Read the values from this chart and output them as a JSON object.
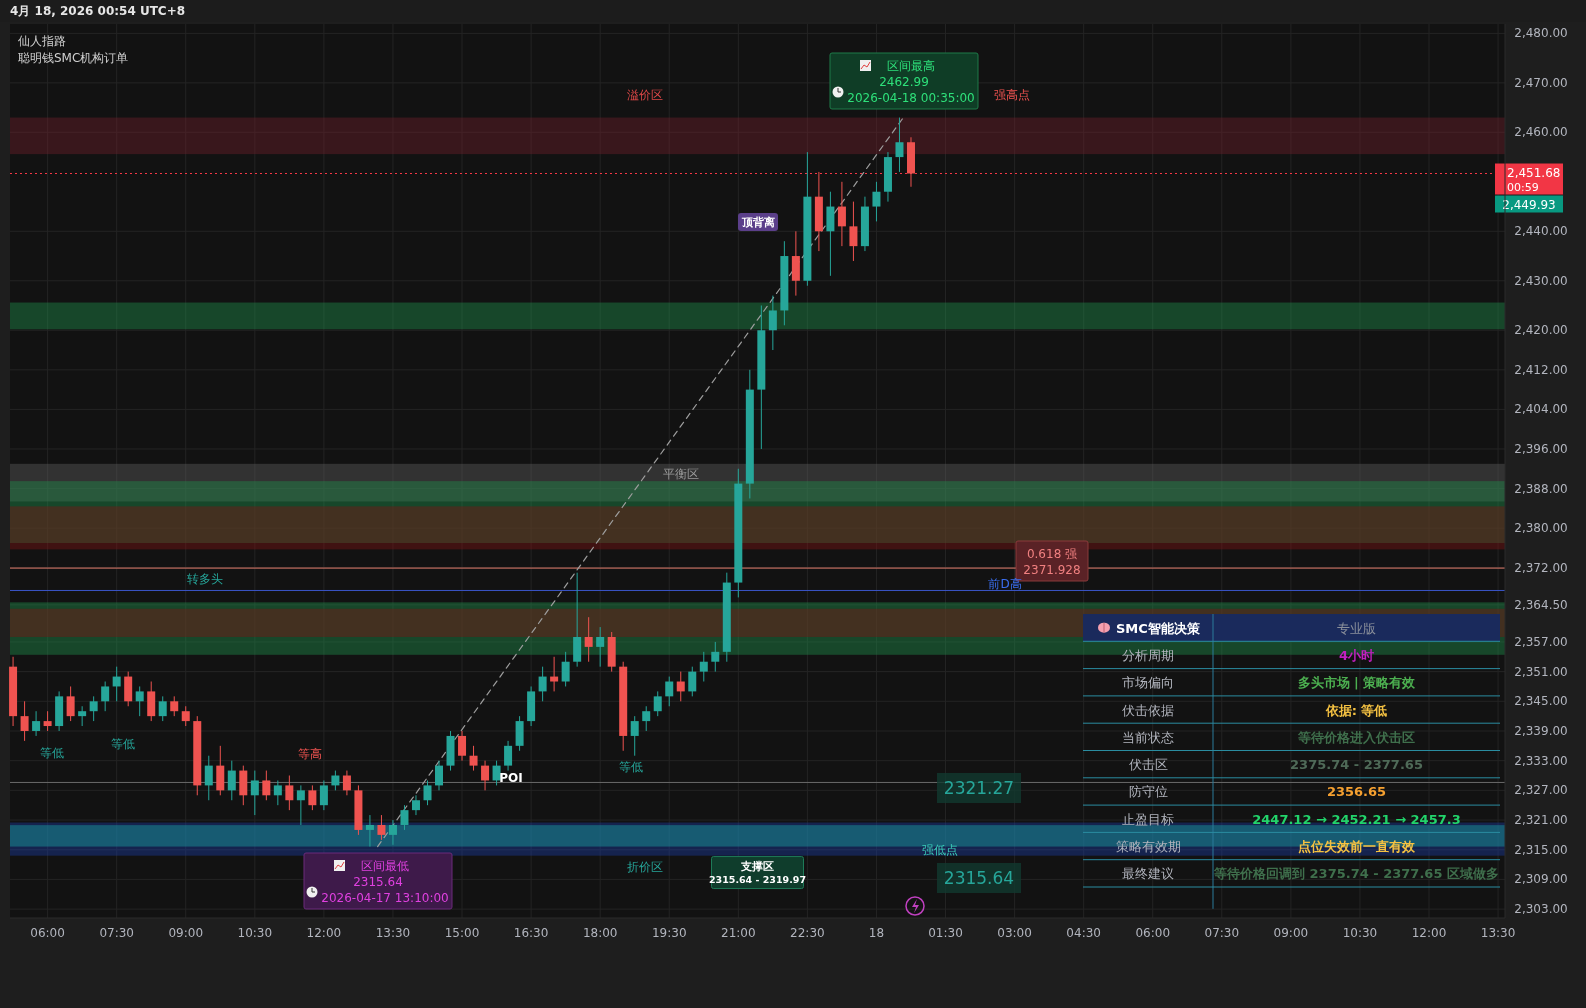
{
  "chart_data": [
    {
      "type": "candlestick",
      "title": "仙人指路",
      "subtitle": "聪明钱SMC机构订单",
      "xlim": [
        "2026-04-17T05:11",
        "2026-04-18T13:39"
      ],
      "ylim": [
        2301.2,
        2481.9
      ],
      "xticks": [
        {
          "value": "2026-04-17T06:00",
          "label": "06:00"
        },
        {
          "value": "2026-04-17T07:30",
          "label": "07:30"
        },
        {
          "value": "2026-04-17T09:00",
          "label": "09:00"
        },
        {
          "value": "2026-04-17T10:30",
          "label": "10:30"
        },
        {
          "value": "2026-04-17T12:00",
          "label": "12:00"
        },
        {
          "value": "2026-04-17T13:30",
          "label": "13:30"
        },
        {
          "value": "2026-04-17T15:00",
          "label": "15:00"
        },
        {
          "value": "2026-04-17T16:30",
          "label": "16:30"
        },
        {
          "value": "2026-04-17T18:00",
          "label": "18:00"
        },
        {
          "value": "2026-04-17T19:30",
          "label": "19:30"
        },
        {
          "value": "2026-04-17T21:00",
          "label": "21:00"
        },
        {
          "value": "2026-04-17T22:30",
          "label": "22:30"
        },
        {
          "value": "2026-04-18T00:00",
          "label": "18"
        },
        {
          "value": "2026-04-18T01:30",
          "label": "01:30"
        },
        {
          "value": "2026-04-18T03:00",
          "label": "03:00"
        },
        {
          "value": "2026-04-18T04:30",
          "label": "04:30"
        },
        {
          "value": "2026-04-18T06:00",
          "label": "06:00"
        },
        {
          "value": "2026-04-18T07:30",
          "label": "07:30"
        },
        {
          "value": "2026-04-18T09:00",
          "label": "09:00"
        },
        {
          "value": "2026-04-18T10:30",
          "label": "10:30"
        },
        {
          "value": "2026-04-18T12:00",
          "label": "12:00"
        },
        {
          "value": "2026-04-18T13:30",
          "label": "13:30"
        }
      ],
      "yticks": [
        {
          "value": 2480,
          "label": "2,480.00"
        },
        {
          "value": 2470,
          "label": "2,470.00"
        },
        {
          "value": 2460,
          "label": "2,460.00"
        },
        {
          "value": 2440,
          "label": "2,440.00"
        },
        {
          "value": 2430,
          "label": "2,430.00"
        },
        {
          "value": 2420,
          "label": "2,420.00"
        },
        {
          "value": 2412,
          "label": "2,412.00"
        },
        {
          "value": 2404,
          "label": "2,404.00"
        },
        {
          "value": 2396,
          "label": "2,396.00"
        },
        {
          "value": 2388,
          "label": "2,388.00"
        },
        {
          "value": 2380,
          "label": "2,380.00"
        },
        {
          "value": 2372,
          "label": "2,372.00"
        },
        {
          "value": 2364.5,
          "label": "2,364.50"
        },
        {
          "value": 2357,
          "label": "2,357.00"
        },
        {
          "value": 2351,
          "label": "2,351.00"
        },
        {
          "value": 2345,
          "label": "2,345.00"
        },
        {
          "value": 2339,
          "label": "2,339.00"
        },
        {
          "value": 2333,
          "label": "2,333.00"
        },
        {
          "value": 2327,
          "label": "2,327.00"
        },
        {
          "value": 2321,
          "label": "2,321.00"
        },
        {
          "value": 2315,
          "label": "2,315.00"
        },
        {
          "value": 2309,
          "label": "2,309.00"
        },
        {
          "value": 2303,
          "label": "2,303.00"
        }
      ],
      "grid": true,
      "x": [
        "2026-04-17T05:15",
        "2026-04-17T05:30",
        "2026-04-17T05:45",
        "2026-04-17T06:00",
        "2026-04-17T06:15",
        "2026-04-17T06:30",
        "2026-04-17T06:45",
        "2026-04-17T07:00",
        "2026-04-17T07:15",
        "2026-04-17T07:30",
        "2026-04-17T07:45",
        "2026-04-17T08:00",
        "2026-04-17T08:15",
        "2026-04-17T08:30",
        "2026-04-17T08:45",
        "2026-04-17T09:00",
        "2026-04-17T09:15",
        "2026-04-17T09:30",
        "2026-04-17T09:45",
        "2026-04-17T10:00",
        "2026-04-17T10:15",
        "2026-04-17T10:30",
        "2026-04-17T10:45",
        "2026-04-17T11:00",
        "2026-04-17T11:15",
        "2026-04-17T11:30",
        "2026-04-17T11:45",
        "2026-04-17T12:00",
        "2026-04-17T12:15",
        "2026-04-17T12:30",
        "2026-04-17T12:45",
        "2026-04-17T13:00",
        "2026-04-17T13:15",
        "2026-04-17T13:30",
        "2026-04-17T13:45",
        "2026-04-17T14:00",
        "2026-04-17T14:15",
        "2026-04-17T14:30",
        "2026-04-17T14:45",
        "2026-04-17T15:00",
        "2026-04-17T15:15",
        "2026-04-17T15:30",
        "2026-04-17T15:45",
        "2026-04-17T16:00",
        "2026-04-17T16:15",
        "2026-04-17T16:30",
        "2026-04-17T16:45",
        "2026-04-17T17:00",
        "2026-04-17T17:15",
        "2026-04-17T17:30",
        "2026-04-17T17:45",
        "2026-04-17T18:00",
        "2026-04-17T18:15",
        "2026-04-17T18:30",
        "2026-04-17T18:45",
        "2026-04-17T19:00",
        "2026-04-17T19:15",
        "2026-04-17T19:30",
        "2026-04-17T19:45",
        "2026-04-17T20:00",
        "2026-04-17T20:15",
        "2026-04-17T20:30",
        "2026-04-17T20:45",
        "2026-04-17T21:00",
        "2026-04-17T21:15",
        "2026-04-17T21:30",
        "2026-04-17T21:45",
        "2026-04-17T22:00",
        "2026-04-17T22:15",
        "2026-04-17T22:30",
        "2026-04-17T22:45",
        "2026-04-17T23:00",
        "2026-04-17T23:15",
        "2026-04-17T23:30",
        "2026-04-17T23:45",
        "2026-04-18T00:00",
        "2026-04-18T00:15",
        "2026-04-18T00:30",
        "2026-04-18T00:45"
      ],
      "ohlc": [
        [
          2352,
          2354,
          2340,
          2342
        ],
        [
          2342,
          2345,
          2337,
          2339
        ],
        [
          2339,
          2343,
          2338,
          2341
        ],
        [
          2341,
          2343,
          2339,
          2340
        ],
        [
          2340,
          2347,
          2339,
          2346
        ],
        [
          2346,
          2348,
          2341,
          2342
        ],
        [
          2342,
          2344,
          2340,
          2343
        ],
        [
          2343,
          2346,
          2341,
          2345
        ],
        [
          2345,
          2349,
          2343,
          2348
        ],
        [
          2348,
          2352,
          2345,
          2350
        ],
        [
          2350,
          2351,
          2344,
          2345
        ],
        [
          2345,
          2348,
          2342,
          2347
        ],
        [
          2347,
          2349,
          2341,
          2342
        ],
        [
          2342,
          2346,
          2341,
          2345
        ],
        [
          2345,
          2346,
          2342,
          2343
        ],
        [
          2343,
          2344,
          2340,
          2341
        ],
        [
          2341,
          2342,
          2326,
          2328
        ],
        [
          2328,
          2334,
          2325,
          2332
        ],
        [
          2332,
          2336,
          2326,
          2327
        ],
        [
          2327,
          2333,
          2325,
          2331
        ],
        [
          2331,
          2332,
          2324,
          2326
        ],
        [
          2326,
          2331,
          2322,
          2329
        ],
        [
          2329,
          2331,
          2325,
          2326
        ],
        [
          2326,
          2329,
          2324,
          2328
        ],
        [
          2328,
          2330,
          2323,
          2325
        ],
        [
          2325,
          2328,
          2320,
          2327
        ],
        [
          2327,
          2328,
          2323,
          2324
        ],
        [
          2324,
          2329,
          2323,
          2328
        ],
        [
          2328,
          2331,
          2327,
          2330
        ],
        [
          2330,
          2331,
          2326,
          2327
        ],
        [
          2327,
          2328,
          2318,
          2319
        ],
        [
          2319,
          2322,
          2315.64,
          2320
        ],
        [
          2320,
          2322,
          2317,
          2318
        ],
        [
          2318,
          2321,
          2316,
          2320
        ],
        [
          2320,
          2324,
          2319,
          2323
        ],
        [
          2323,
          2326,
          2322,
          2325
        ],
        [
          2325,
          2329,
          2324,
          2328
        ],
        [
          2328,
          2333,
          2327,
          2332
        ],
        [
          2332,
          2339,
          2331,
          2338
        ],
        [
          2338,
          2339,
          2333,
          2334
        ],
        [
          2334,
          2336,
          2331,
          2332
        ],
        [
          2332,
          2333,
          2327,
          2329
        ],
        [
          2329,
          2333,
          2328,
          2332
        ],
        [
          2332,
          2337,
          2331,
          2336
        ],
        [
          2336,
          2342,
          2335,
          2341
        ],
        [
          2341,
          2348,
          2340,
          2347
        ],
        [
          2347,
          2352,
          2345,
          2350
        ],
        [
          2350,
          2354,
          2347,
          2349
        ],
        [
          2349,
          2355,
          2348,
          2353
        ],
        [
          2353,
          2371,
          2352,
          2358
        ],
        [
          2358,
          2362,
          2353,
          2356
        ],
        [
          2356,
          2360,
          2352,
          2358
        ],
        [
          2358,
          2359,
          2351,
          2352
        ],
        [
          2352,
          2353,
          2335,
          2338
        ],
        [
          2338,
          2342,
          2334,
          2341
        ],
        [
          2341,
          2344,
          2339,
          2343
        ],
        [
          2343,
          2347,
          2342,
          2346
        ],
        [
          2346,
          2350,
          2344,
          2349
        ],
        [
          2349,
          2351,
          2345,
          2347
        ],
        [
          2347,
          2352,
          2346,
          2351
        ],
        [
          2351,
          2355,
          2349,
          2353
        ],
        [
          2353,
          2357,
          2351,
          2355
        ],
        [
          2355,
          2371,
          2353,
          2369
        ],
        [
          2369,
          2392,
          2366,
          2389
        ],
        [
          2389,
          2412,
          2386,
          2408
        ],
        [
          2408,
          2425,
          2396,
          2420
        ],
        [
          2420,
          2427,
          2416,
          2424
        ],
        [
          2424,
          2438,
          2421,
          2435
        ],
        [
          2435,
          2440,
          2427,
          2430
        ],
        [
          2430,
          2456,
          2429,
          2447
        ],
        [
          2447,
          2452,
          2436,
          2440
        ],
        [
          2440,
          2448,
          2431,
          2445
        ],
        [
          2445,
          2450,
          2437,
          2441
        ],
        [
          2441,
          2446,
          2434,
          2437
        ],
        [
          2437,
          2447,
          2436,
          2445
        ],
        [
          2445,
          2450,
          2442,
          2448
        ],
        [
          2448,
          2456,
          2446,
          2455
        ],
        [
          2455,
          2462.99,
          2452,
          2458
        ],
        [
          2458,
          2459,
          2449,
          2451.68
        ]
      ],
      "series": [
        {
          "type": "line",
          "x": [
            "2026-04-17T13:10",
            "2026-04-18T00:35"
          ],
          "values": [
            2315.64,
            2462.99
          ],
          "color": "#9e9e9e",
          "line_style": "dashed"
        }
      ],
      "bands": [
        {
          "axis": "y",
          "from": 2455.6,
          "to": 2462.99,
          "color": "#6b1f2a"
        },
        {
          "axis": "y",
          "from": 2385.4,
          "to": 2393,
          "color": "#5a5a5a"
        },
        {
          "axis": "y",
          "from": 2420.2,
          "to": 2425.6,
          "color": "#1e8a4a"
        },
        {
          "axis": "y",
          "from": 2377,
          "to": 2389.5,
          "color": "#1e8a4a"
        },
        {
          "axis": "y",
          "from": 2354.4,
          "to": 2365,
          "color": "#1e8a4a"
        },
        {
          "axis": "y",
          "from": 2375.7,
          "to": 2384.4,
          "color": "#7a1414"
        },
        {
          "axis": "y",
          "from": 2358,
          "to": 2363.7,
          "color": "#7a1414"
        },
        {
          "axis": "y",
          "from": 2313.8,
          "to": 2320.5,
          "color": "#1a3a9a"
        },
        {
          "axis": "y",
          "from": 2315.64,
          "to": 2319.97,
          "label": "支撑区\n2315.64 - 2319.97",
          "color": "#1aa0a0"
        }
      ],
      "ref_lines": [
        {
          "axis": "y",
          "value": 2451.68,
          "label": "2,451.68",
          "color": "#f23645",
          "line_style": "dotted"
        },
        {
          "axis": "y",
          "value": 2371.928,
          "color": "#e07a6a",
          "line_style": "solid"
        },
        {
          "axis": "y",
          "value": 2367.4,
          "color": "#3a55c8",
          "line_style": "solid"
        },
        {
          "axis": "y",
          "value": 2328.6,
          "color": "#6a6a6a",
          "line_style": "solid"
        }
      ],
      "annotations": [
        "4月 18, 2026 00:54 UTC+8",
        "00:59",
        "2,449.93",
        "区间最高\n2462.99\n2026-04-18 00:35:00",
        "0.618 强\n2371.928",
        "区间最低\n2315.64\n2026-04-17 13:10:00",
        "等低",
        "等低",
        "等高",
        "等低",
        "转多头",
        "平衡区",
        "溢价区",
        "折价区",
        "顶背离",
        "强低点",
        "强高点",
        "POI",
        "前D高",
        "2321.27",
        "2315.64"
      ]
    },
    {
      "type": "other",
      "title": "SMC智能决策",
      "subtitle": "专业版",
      "categories": [
        "分析周期",
        "市场偏向",
        "伏击依据",
        "当前状态",
        "伏击区",
        "防守位",
        "止盈目标",
        "策略有效期",
        "最终建议"
      ],
      "value_labels": [
        "4小时",
        "多头市场 | 策略有效",
        "依据: 等低",
        "等待价格进入伏击区",
        "2375.74 - 2377.65",
        "2356.65",
        "2447.12 → 2452.21 → 2457.3",
        "点位失效前一直有效",
        "等待价格回调到 2375.74 - 2377.65 区域做多"
      ],
      "colors": [
        "#c21fc0",
        "#4caf50",
        "#f5c242",
        "#3f6f4c",
        "#4f6a58",
        "#f5a030",
        "#22d46b",
        "#f5c242",
        "#3f6f4c"
      ]
    }
  ]
}
